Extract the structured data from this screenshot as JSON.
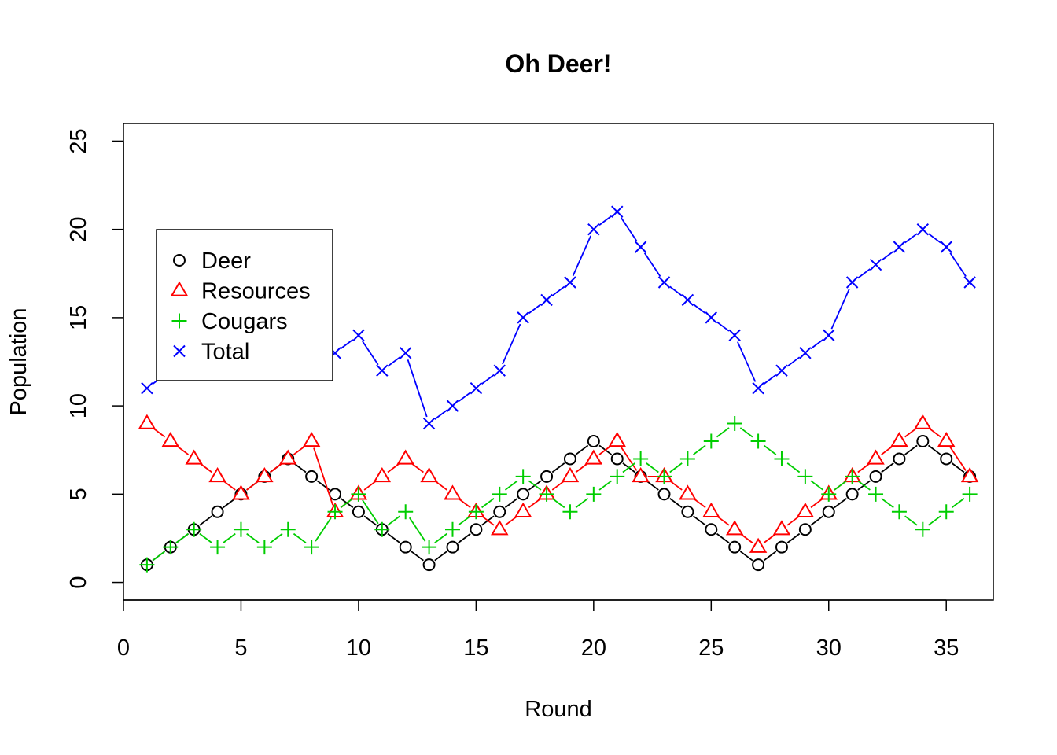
{
  "chart_data": {
    "type": "line",
    "title": "Oh Deer!",
    "xlabel": "Round",
    "ylabel": "Population",
    "xlim": [
      0,
      37
    ],
    "ylim": [
      -1,
      26
    ],
    "x_ticks": [
      0,
      5,
      10,
      15,
      20,
      25,
      30,
      35
    ],
    "y_ticks": [
      0,
      5,
      10,
      15,
      20,
      25
    ],
    "grid": false,
    "legend_position": "top-left",
    "x": [
      1,
      2,
      3,
      4,
      5,
      6,
      7,
      8,
      9,
      10,
      11,
      12,
      13,
      14,
      15,
      16,
      17,
      18,
      19,
      20,
      21,
      22,
      23,
      24,
      25,
      26,
      27,
      28,
      29,
      30,
      31,
      32,
      33,
      34,
      35,
      36
    ],
    "series": [
      {
        "name": "Deer",
        "color": "#000000",
        "marker": "circle",
        "values": [
          1,
          2,
          3,
          4,
          5,
          6,
          7,
          6,
          5,
          4,
          3,
          2,
          1,
          2,
          3,
          4,
          5,
          6,
          7,
          8,
          7,
          6,
          5,
          4,
          3,
          2,
          1,
          2,
          3,
          4,
          5,
          6,
          7,
          8,
          7,
          6
        ]
      },
      {
        "name": "Resources",
        "color": "#ff0000",
        "marker": "triangle",
        "values": [
          9,
          8,
          7,
          6,
          5,
          6,
          7,
          8,
          4,
          5,
          6,
          7,
          6,
          5,
          4,
          3,
          4,
          5,
          6,
          7,
          8,
          6,
          6,
          5,
          4,
          3,
          2,
          3,
          4,
          5,
          6,
          7,
          8,
          9,
          8,
          6
        ]
      },
      {
        "name": "Cougars",
        "color": "#00cd00",
        "marker": "plus",
        "values": [
          1,
          2,
          3,
          2,
          3,
          2,
          3,
          2,
          4,
          5,
          3,
          4,
          2,
          3,
          4,
          5,
          6,
          5,
          4,
          5,
          6,
          7,
          6,
          7,
          8,
          9,
          8,
          7,
          6,
          5,
          6,
          5,
          4,
          3,
          4,
          5
        ]
      },
      {
        "name": "Total",
        "color": "#0000ff",
        "marker": "cross",
        "values": [
          11,
          12,
          13,
          12,
          13,
          14,
          17,
          16,
          13,
          14,
          12,
          13,
          9,
          10,
          11,
          12,
          15,
          16,
          17,
          20,
          21,
          19,
          17,
          16,
          15,
          14,
          11,
          12,
          13,
          14,
          17,
          18,
          19,
          20,
          19,
          17
        ]
      }
    ]
  }
}
